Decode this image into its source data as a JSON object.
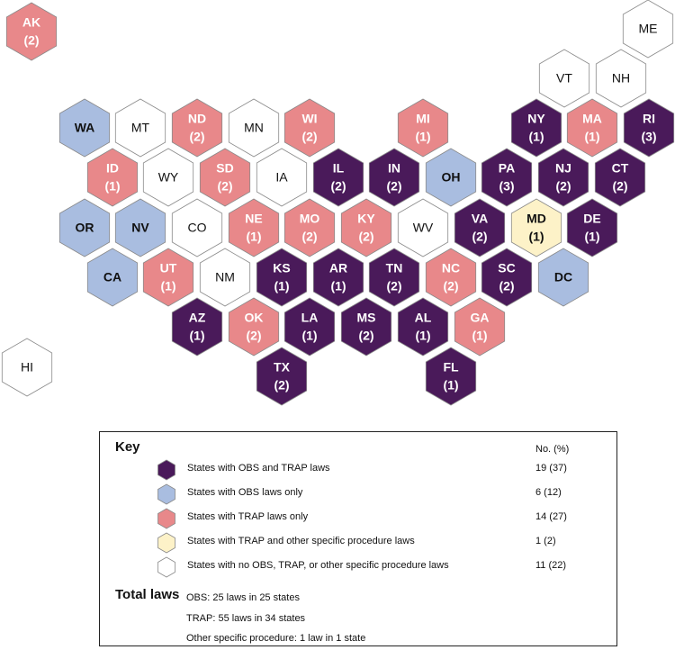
{
  "colors": {
    "both": "#4a1a5a",
    "obs": "#a9bde0",
    "trap": "#e8888a",
    "trap_other": "#fdf2c8",
    "none": "#ffffff"
  },
  "states": [
    {
      "abbr": "AK",
      "count": "(2)",
      "category": "trap"
    },
    {
      "abbr": "ME",
      "count": "",
      "category": "none"
    },
    {
      "abbr": "VT",
      "count": "",
      "category": "none"
    },
    {
      "abbr": "NH",
      "count": "",
      "category": "none"
    },
    {
      "abbr": "WA",
      "count": "",
      "category": "obs"
    },
    {
      "abbr": "MT",
      "count": "",
      "category": "none"
    },
    {
      "abbr": "ND",
      "count": "(2)",
      "category": "trap"
    },
    {
      "abbr": "MN",
      "count": "",
      "category": "none"
    },
    {
      "abbr": "WI",
      "count": "(2)",
      "category": "trap"
    },
    {
      "abbr": "MI",
      "count": "(1)",
      "category": "trap"
    },
    {
      "abbr": "NY",
      "count": "(1)",
      "category": "both"
    },
    {
      "abbr": "MA",
      "count": "(1)",
      "category": "trap"
    },
    {
      "abbr": "RI",
      "count": "(3)",
      "category": "both"
    },
    {
      "abbr": "ID",
      "count": "(1)",
      "category": "trap"
    },
    {
      "abbr": "WY",
      "count": "",
      "category": "none"
    },
    {
      "abbr": "SD",
      "count": "(2)",
      "category": "trap"
    },
    {
      "abbr": "IA",
      "count": "",
      "category": "none"
    },
    {
      "abbr": "IL",
      "count": "(2)",
      "category": "both"
    },
    {
      "abbr": "IN",
      "count": "(2)",
      "category": "both"
    },
    {
      "abbr": "OH",
      "count": "",
      "category": "obs"
    },
    {
      "abbr": "PA",
      "count": "(3)",
      "category": "both"
    },
    {
      "abbr": "NJ",
      "count": "(2)",
      "category": "both"
    },
    {
      "abbr": "CT",
      "count": "(2)",
      "category": "both"
    },
    {
      "abbr": "OR",
      "count": "",
      "category": "obs"
    },
    {
      "abbr": "NV",
      "count": "",
      "category": "obs"
    },
    {
      "abbr": "CO",
      "count": "",
      "category": "none"
    },
    {
      "abbr": "NE",
      "count": "(1)",
      "category": "trap"
    },
    {
      "abbr": "MO",
      "count": "(2)",
      "category": "trap"
    },
    {
      "abbr": "KY",
      "count": "(2)",
      "category": "trap"
    },
    {
      "abbr": "WV",
      "count": "",
      "category": "none"
    },
    {
      "abbr": "VA",
      "count": "(2)",
      "category": "both"
    },
    {
      "abbr": "MD",
      "count": "(1)",
      "category": "trap_other"
    },
    {
      "abbr": "DE",
      "count": "(1)",
      "category": "both"
    },
    {
      "abbr": "CA",
      "count": "",
      "category": "obs"
    },
    {
      "abbr": "UT",
      "count": "(1)",
      "category": "trap"
    },
    {
      "abbr": "NM",
      "count": "",
      "category": "none"
    },
    {
      "abbr": "KS",
      "count": "(1)",
      "category": "both"
    },
    {
      "abbr": "AR",
      "count": "(1)",
      "category": "both"
    },
    {
      "abbr": "TN",
      "count": "(2)",
      "category": "both"
    },
    {
      "abbr": "NC",
      "count": "(2)",
      "category": "trap"
    },
    {
      "abbr": "SC",
      "count": "(2)",
      "category": "both"
    },
    {
      "abbr": "DC",
      "count": "",
      "category": "obs"
    },
    {
      "abbr": "AZ",
      "count": "(1)",
      "category": "both"
    },
    {
      "abbr": "OK",
      "count": "(2)",
      "category": "trap"
    },
    {
      "abbr": "LA",
      "count": "(1)",
      "category": "both"
    },
    {
      "abbr": "MS",
      "count": "(2)",
      "category": "both"
    },
    {
      "abbr": "AL",
      "count": "(1)",
      "category": "both"
    },
    {
      "abbr": "GA",
      "count": "(1)",
      "category": "trap"
    },
    {
      "abbr": "HI",
      "count": "",
      "category": "none"
    },
    {
      "abbr": "TX",
      "count": "(2)",
      "category": "both"
    },
    {
      "abbr": "FL",
      "count": "(1)",
      "category": "both"
    }
  ],
  "key": {
    "title": "Key",
    "column_header": "No. (%)",
    "items": [
      {
        "category": "both",
        "label": "States with OBS and TRAP laws",
        "value": "19 (37)"
      },
      {
        "category": "obs",
        "label": "States with OBS laws only",
        "value": "6 (12)"
      },
      {
        "category": "trap",
        "label": "States with TRAP laws only",
        "value": "14 (27)"
      },
      {
        "category": "trap_other",
        "label": "States with TRAP and other specific procedure laws",
        "value": "1 (2)"
      },
      {
        "category": "none",
        "label": "States with no OBS, TRAP, or other specific procedure laws",
        "value": "11 (22)"
      }
    ]
  },
  "totals": {
    "title": "Total laws",
    "obs": "OBS: 25 laws in 25 states",
    "trap": "TRAP: 55 laws in 34 states",
    "other": "Other specific procedure:  1 law in 1 state"
  }
}
